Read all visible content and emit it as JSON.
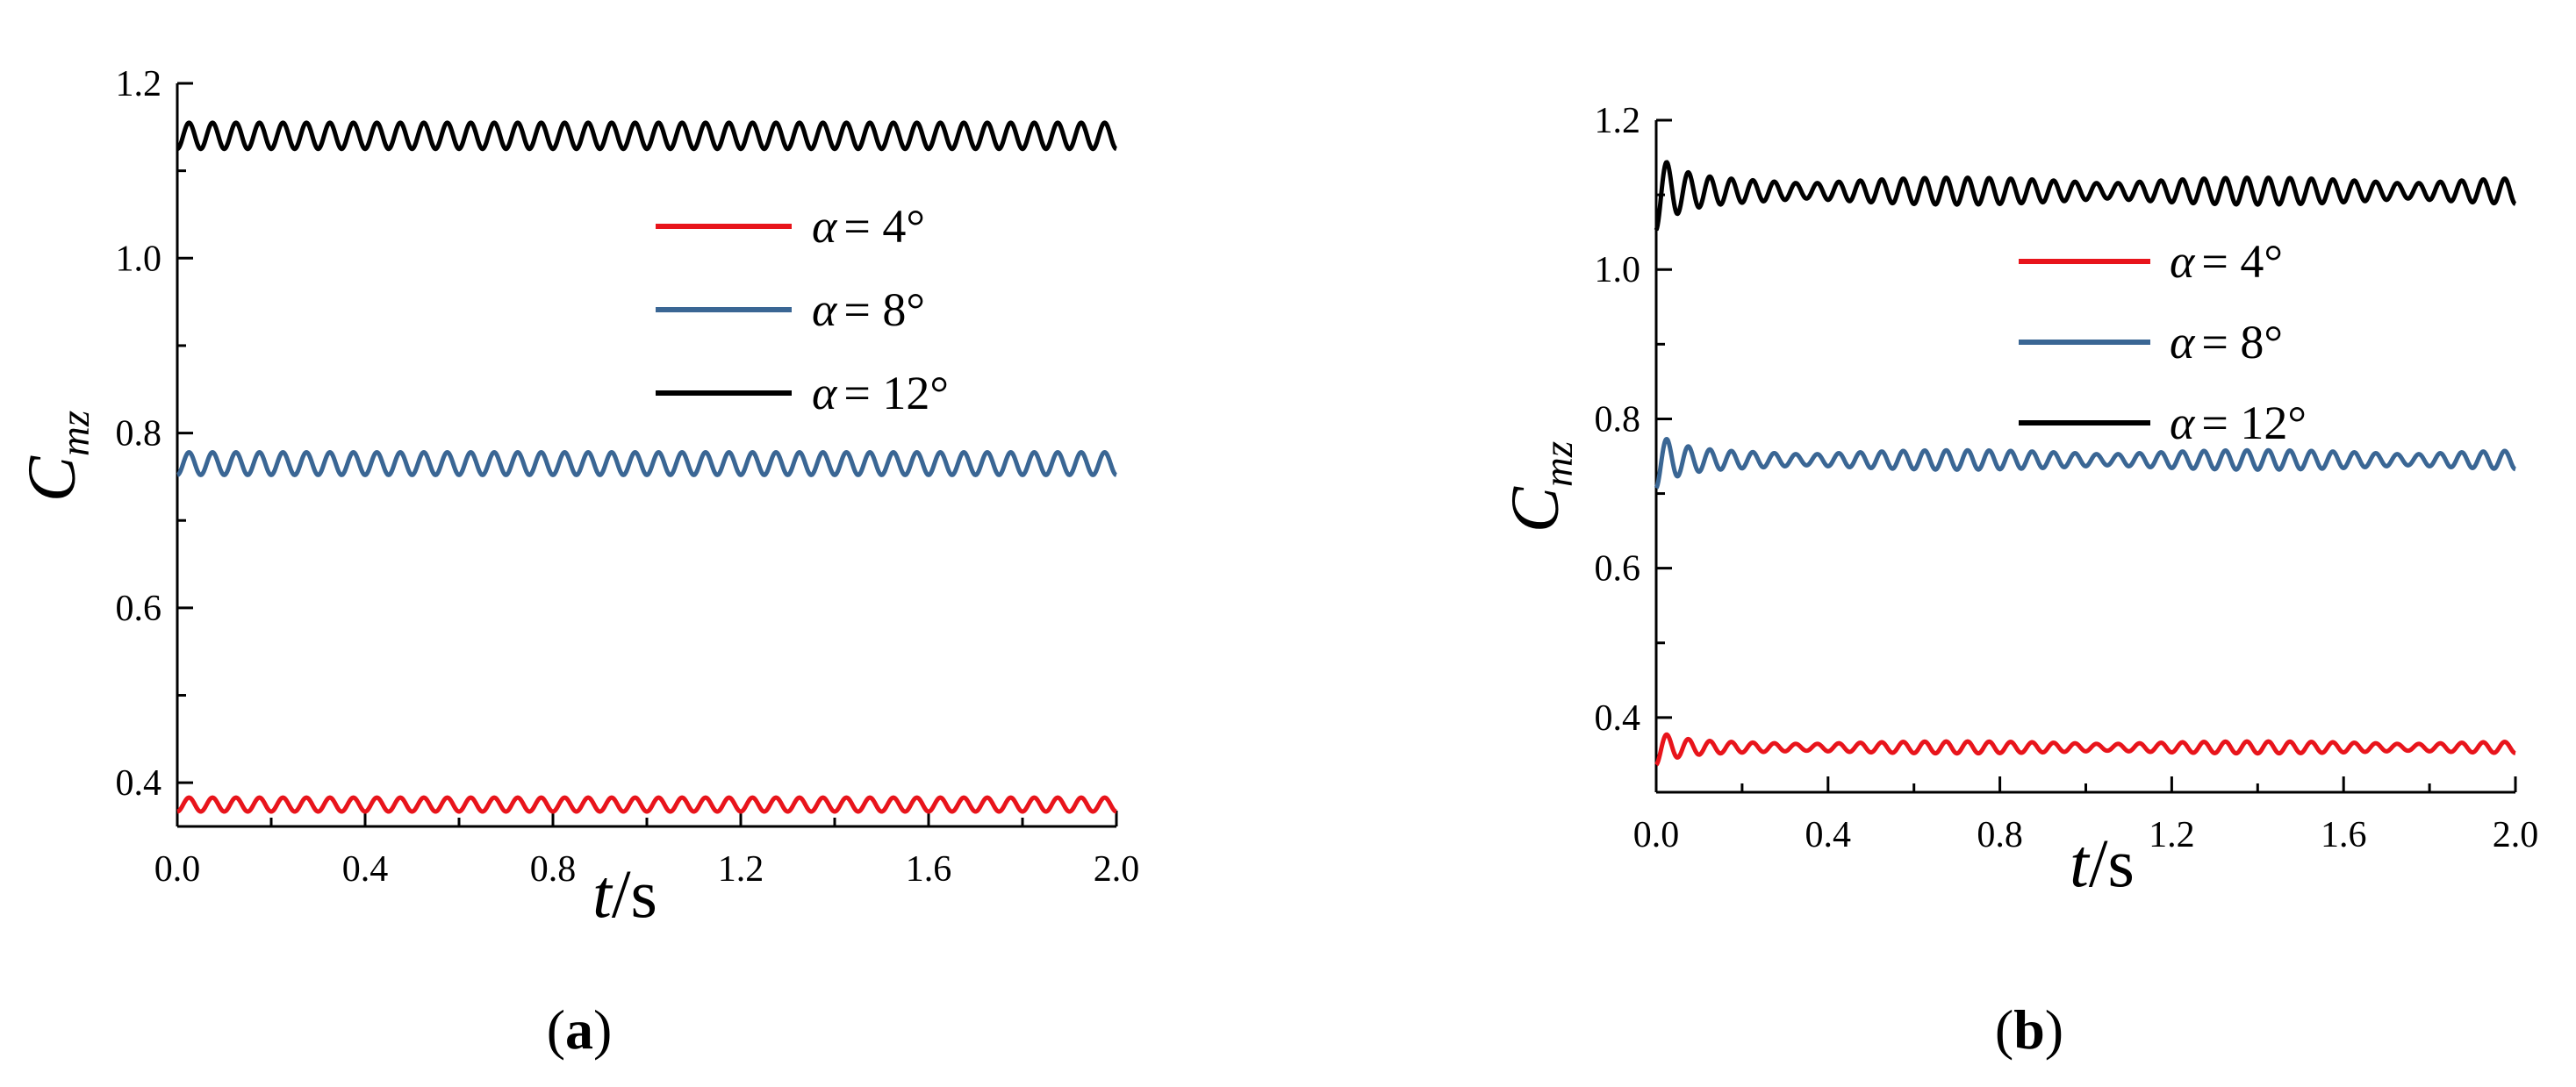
{
  "chart_data": [
    {
      "panel": "(a)",
      "type": "line",
      "xlabel": "t/s",
      "ylabel": "Cmz",
      "xlim": [
        0.0,
        2.0
      ],
      "ylim": [
        0.35,
        1.2
      ],
      "xticks": [
        "0.0",
        "0.4",
        "0.8",
        "1.2",
        "1.6",
        "2.0"
      ],
      "yticks": [
        "0.4",
        "0.6",
        "0.8",
        "1.0",
        "1.2"
      ],
      "legend": "top-right",
      "series": [
        {
          "name": "α = 4°",
          "color": "#e8141b",
          "mean": 0.375,
          "amplitude": 0.008,
          "cycles": 40,
          "transient": false
        },
        {
          "name": "α = 8°",
          "color": "#3a6694",
          "mean": 0.765,
          "amplitude": 0.013,
          "cycles": 40,
          "transient": false
        },
        {
          "name": "α = 12°",
          "color": "#000000",
          "mean": 1.14,
          "amplitude": 0.015,
          "cycles": 40,
          "transient": false
        }
      ]
    },
    {
      "panel": "(b)",
      "type": "line",
      "xlabel": "t/s",
      "ylabel": "Cmz",
      "xlim": [
        0.0,
        2.0
      ],
      "ylim": [
        0.3,
        1.2
      ],
      "xticks": [
        "0.0",
        "0.4",
        "0.8",
        "1.2",
        "1.6",
        "2.0"
      ],
      "yticks": [
        "0.4",
        "0.6",
        "0.8",
        "1.0",
        "1.2"
      ],
      "legend": "top-right",
      "series": [
        {
          "name": "α = 4°",
          "color": "#e8141b",
          "mean": 0.36,
          "amplitude": 0.008,
          "cycles": 40,
          "transient": true
        },
        {
          "name": "α = 8°",
          "color": "#3a6694",
          "mean": 0.745,
          "amplitude": 0.013,
          "cycles": 40,
          "transient": true
        },
        {
          "name": "α = 12°",
          "color": "#000000",
          "mean": 1.105,
          "amplitude": 0.018,
          "cycles": 40,
          "transient": true
        }
      ]
    }
  ]
}
